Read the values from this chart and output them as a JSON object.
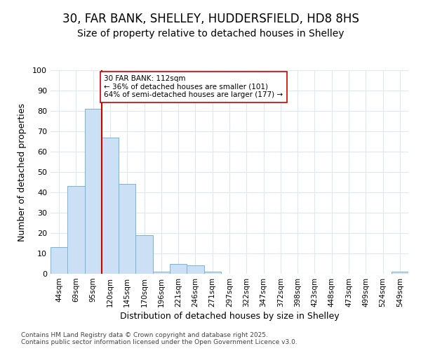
{
  "title1": "30, FAR BANK, SHELLEY, HUDDERSFIELD, HD8 8HS",
  "title2": "Size of property relative to detached houses in Shelley",
  "xlabel": "Distribution of detached houses by size in Shelley",
  "ylabel": "Number of detached properties",
  "categories": [
    "44sqm",
    "69sqm",
    "95sqm",
    "120sqm",
    "145sqm",
    "170sqm",
    "196sqm",
    "221sqm",
    "246sqm",
    "271sqm",
    "297sqm",
    "322sqm",
    "347sqm",
    "372sqm",
    "398sqm",
    "423sqm",
    "448sqm",
    "473sqm",
    "499sqm",
    "524sqm",
    "549sqm"
  ],
  "values": [
    13,
    43,
    81,
    67,
    44,
    19,
    1,
    5,
    4,
    1,
    0,
    0,
    0,
    0,
    0,
    0,
    0,
    0,
    0,
    0,
    1
  ],
  "bar_color": "#cce0f5",
  "bar_edge_color": "#7ab3d9",
  "annotation_text_line1": "30 FAR BANK: 112sqm",
  "annotation_text_line2": "← 36% of detached houses are smaller (101)",
  "annotation_text_line3": "64% of semi-detached houses are larger (177) →",
  "vline_color": "#cc0000",
  "annotation_box_edge_color": "#cc0000",
  "ylim": [
    0,
    100
  ],
  "yticks": [
    0,
    10,
    20,
    30,
    40,
    50,
    60,
    70,
    80,
    90,
    100
  ],
  "background_color": "#ffffff",
  "plot_bg_color": "#ffffff",
  "grid_color": "#dde8f5",
  "footer": "Contains HM Land Registry data © Crown copyright and database right 2025.\nContains public sector information licensed under the Open Government Licence v3.0.",
  "title_fontsize": 12,
  "subtitle_fontsize": 10,
  "vline_x_index": 3
}
